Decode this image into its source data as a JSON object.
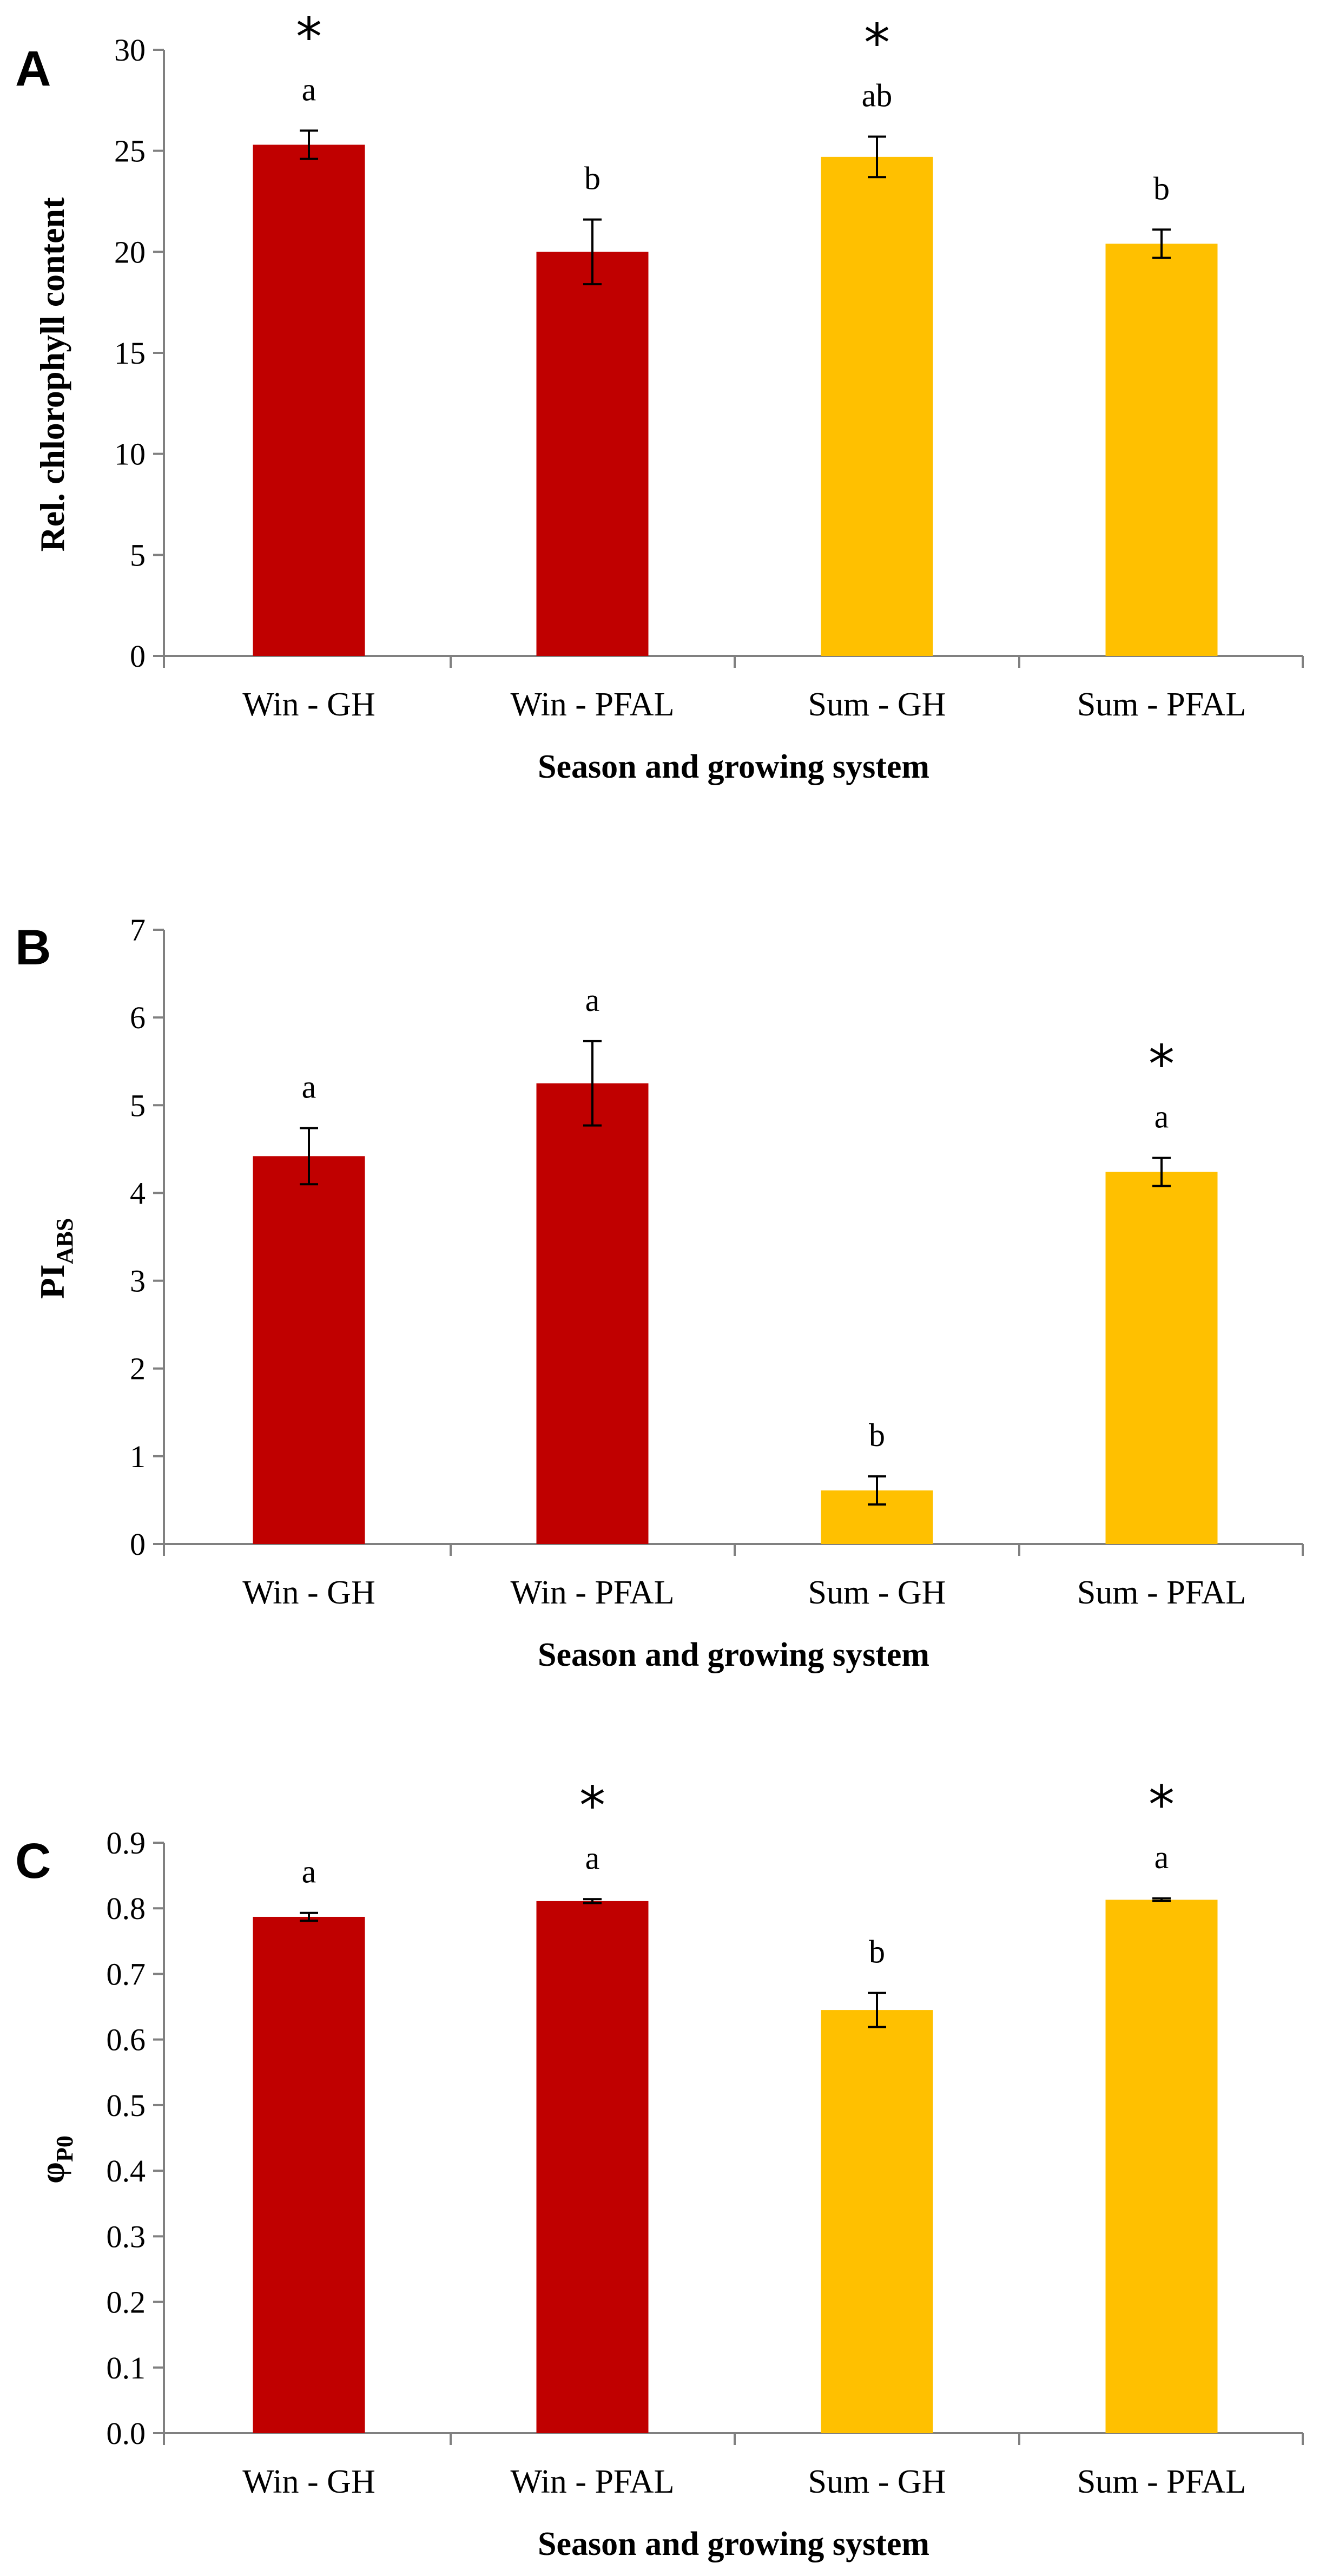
{
  "chart_data": [
    {
      "panel": "A",
      "type": "bar",
      "title": "",
      "xlabel": "Season and growing system",
      "ylabel": "Rel. chlorophyll content",
      "ylabel_sub": "",
      "ylim": [
        0,
        30
      ],
      "yticks": [
        "0",
        "5",
        "10",
        "15",
        "20",
        "25",
        "30"
      ],
      "categories": [
        "Win - GH",
        "Win - PFAL",
        "Sum - GH",
        "Sum - PFAL"
      ],
      "values": [
        25.3,
        20.0,
        24.7,
        20.4
      ],
      "errors": [
        0.7,
        1.6,
        1.0,
        0.7
      ],
      "letters": [
        "a",
        "b",
        "ab",
        "b"
      ],
      "stars": [
        "*",
        "",
        "*",
        ""
      ],
      "colors": [
        "#C00000",
        "#C00000",
        "#FFC000",
        "#FFC000"
      ]
    },
    {
      "panel": "B",
      "type": "bar",
      "title": "",
      "xlabel": "Season and growing system",
      "ylabel": "PI",
      "ylabel_sub": "ABS",
      "ylim": [
        0,
        7
      ],
      "yticks": [
        "0",
        "1",
        "2",
        "3",
        "4",
        "5",
        "6",
        "7"
      ],
      "categories": [
        "Win - GH",
        "Win - PFAL",
        "Sum - GH",
        "Sum - PFAL"
      ],
      "values": [
        4.42,
        5.25,
        0.61,
        4.24
      ],
      "errors": [
        0.32,
        0.48,
        0.16,
        0.16
      ],
      "letters": [
        "a",
        "a",
        "b",
        "a"
      ],
      "stars": [
        "",
        "",
        "",
        "*"
      ],
      "colors": [
        "#C00000",
        "#C00000",
        "#FFC000",
        "#FFC000"
      ]
    },
    {
      "panel": "C",
      "type": "bar",
      "title": "",
      "xlabel": "Season and growing system",
      "ylabel": "φ",
      "ylabel_sub": "P0",
      "ylim": [
        0,
        0.9
      ],
      "yticks": [
        "0.0",
        "0.1",
        "0.2",
        "0.3",
        "0.4",
        "0.5",
        "0.6",
        "0.7",
        "0.8",
        "0.9"
      ],
      "categories": [
        "Win - GH",
        "Win - PFAL",
        "Sum - GH",
        "Sum - PFAL"
      ],
      "values": [
        0.787,
        0.811,
        0.645,
        0.813
      ],
      "errors": [
        0.006,
        0.003,
        0.026,
        0.002
      ],
      "letters": [
        "a",
        "a",
        "b",
        "a"
      ],
      "stars": [
        "",
        "*",
        "",
        "*"
      ],
      "colors": [
        "#C00000",
        "#C00000",
        "#FFC000",
        "#FFC000"
      ]
    }
  ]
}
